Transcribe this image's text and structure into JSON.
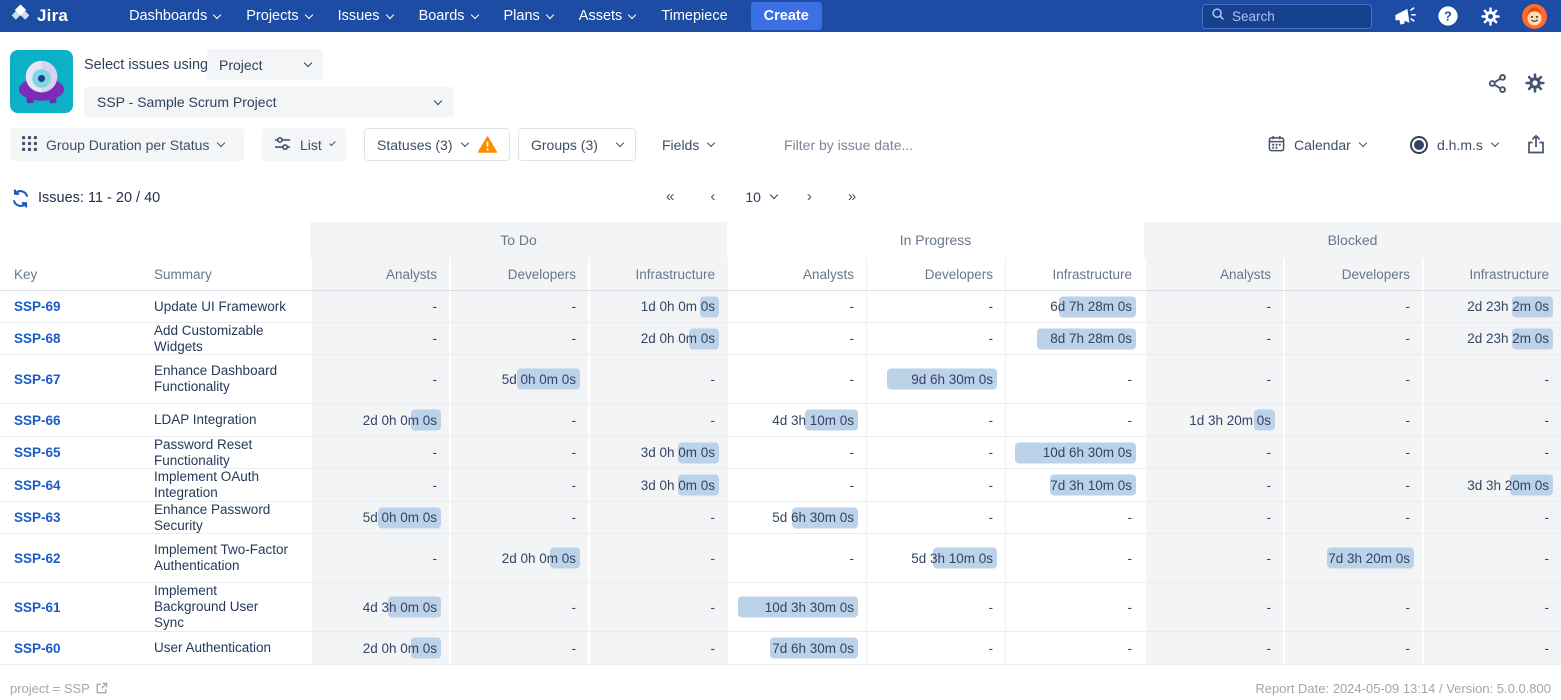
{
  "nav": {
    "logo_text": "Jira",
    "items": [
      {
        "label": "Dashboards",
        "chevron": true
      },
      {
        "label": "Projects",
        "chevron": true
      },
      {
        "label": "Issues",
        "chevron": true
      },
      {
        "label": "Boards",
        "chevron": true
      },
      {
        "label": "Plans",
        "chevron": true
      },
      {
        "label": "Assets",
        "chevron": true
      },
      {
        "label": "Timepiece",
        "chevron": false
      }
    ],
    "create_label": "Create",
    "search_placeholder": "Search"
  },
  "header": {
    "select_issues_label": "Select issues using",
    "mode_value": "Project",
    "project_value": "SSP - Sample Scrum Project"
  },
  "toolbar": {
    "group_button": "Group Duration per Status",
    "view_button": "List",
    "statuses_button": "Statuses (3)",
    "groups_button": "Groups (3)",
    "fields_button": "Fields",
    "filter_placeholder": "Filter by issue date...",
    "calendar_button": "Calendar",
    "format_button": "d.h.m.s"
  },
  "issues_bar": {
    "count_text": "Issues: 11 - 20 / 40",
    "page_size": "10",
    "first_label": "«",
    "prev_label": "‹",
    "next_label": "›",
    "last_label": "»"
  },
  "table": {
    "key_header": "Key",
    "summary_header": "Summary",
    "groups": [
      "To Do",
      "In Progress",
      "Blocked"
    ],
    "subcolumns": [
      "Analysts",
      "Developers",
      "Infrastructure"
    ],
    "rows": [
      {
        "key": "SSP-69",
        "summary": "Update UI Framework",
        "cells": [
          "-",
          "-",
          "1d 0h 0m 0s",
          "-",
          "-",
          "6d 7h 28m 0s",
          "-",
          "-",
          "2d 23h 2m 0s"
        ]
      },
      {
        "key": "SSP-68",
        "summary": "Add Customizable Widgets",
        "cells": [
          "-",
          "-",
          "2d 0h 0m 0s",
          "-",
          "-",
          "8d 7h 28m 0s",
          "-",
          "-",
          "2d 23h 2m 0s"
        ]
      },
      {
        "key": "SSP-67",
        "summary": "Enhance Dashboard Functionality",
        "cells": [
          "-",
          "5d 0h 0m 0s",
          "-",
          "-",
          "9d 6h 30m 0s",
          "-",
          "-",
          "-",
          "-"
        ]
      },
      {
        "key": "SSP-66",
        "summary": "LDAP Integration",
        "cells": [
          "2d 0h 0m 0s",
          "-",
          "-",
          "4d 3h 10m 0s",
          "-",
          "-",
          "1d 3h 20m 0s",
          "-",
          "-"
        ]
      },
      {
        "key": "SSP-65",
        "summary": "Password Reset Functionality",
        "cells": [
          "-",
          "-",
          "3d 0h 0m 0s",
          "-",
          "-",
          "10d 6h 30m 0s",
          "-",
          "-",
          "-"
        ]
      },
      {
        "key": "SSP-64",
        "summary": "Implement OAuth Integration",
        "cells": [
          "-",
          "-",
          "3d 0h 0m 0s",
          "-",
          "-",
          "7d 3h 10m 0s",
          "-",
          "-",
          "3d 3h 20m 0s"
        ]
      },
      {
        "key": "SSP-63",
        "summary": "Enhance Password Security",
        "cells": [
          "5d 0h 0m 0s",
          "-",
          "-",
          "5d 6h 30m 0s",
          "-",
          "-",
          "-",
          "-",
          "-"
        ]
      },
      {
        "key": "SSP-62",
        "summary": "Implement Two-Factor Authentication",
        "cells": [
          "-",
          "2d 0h 0m 0s",
          "-",
          "-",
          "5d 3h 10m 0s",
          "-",
          "-",
          "7d 3h 20m 0s",
          "-"
        ]
      },
      {
        "key": "SSP-61",
        "summary": "Implement Background User Sync",
        "cells": [
          "4d 3h 0m 0s",
          "-",
          "-",
          "10d 3h 30m 0s",
          "-",
          "-",
          "-",
          "-",
          "-"
        ]
      },
      {
        "key": "SSP-60",
        "summary": "User Authentication",
        "cells": [
          "2d 0h 0m 0s",
          "-",
          "-",
          "7d 6h 30m 0s",
          "-",
          "-",
          "-",
          "-",
          "-"
        ]
      }
    ]
  },
  "footer": {
    "left_text": "project = SSP",
    "right_text": "Report Date: 2024-05-09 13:14 / Version: 5.0.0.800"
  },
  "colors": {
    "nav_blue": "#1D4CA4",
    "create_blue": "#3B6FE3",
    "key_link_blue": "#1A5BC8",
    "duration_pill_blue": "#BCD2E9",
    "warning_orange": "#FF8B00",
    "app_icon_teal": "#0CB1C6",
    "shaded_column_gray": "#F3F4F6",
    "avatar_orange": "#FF6B2C"
  }
}
